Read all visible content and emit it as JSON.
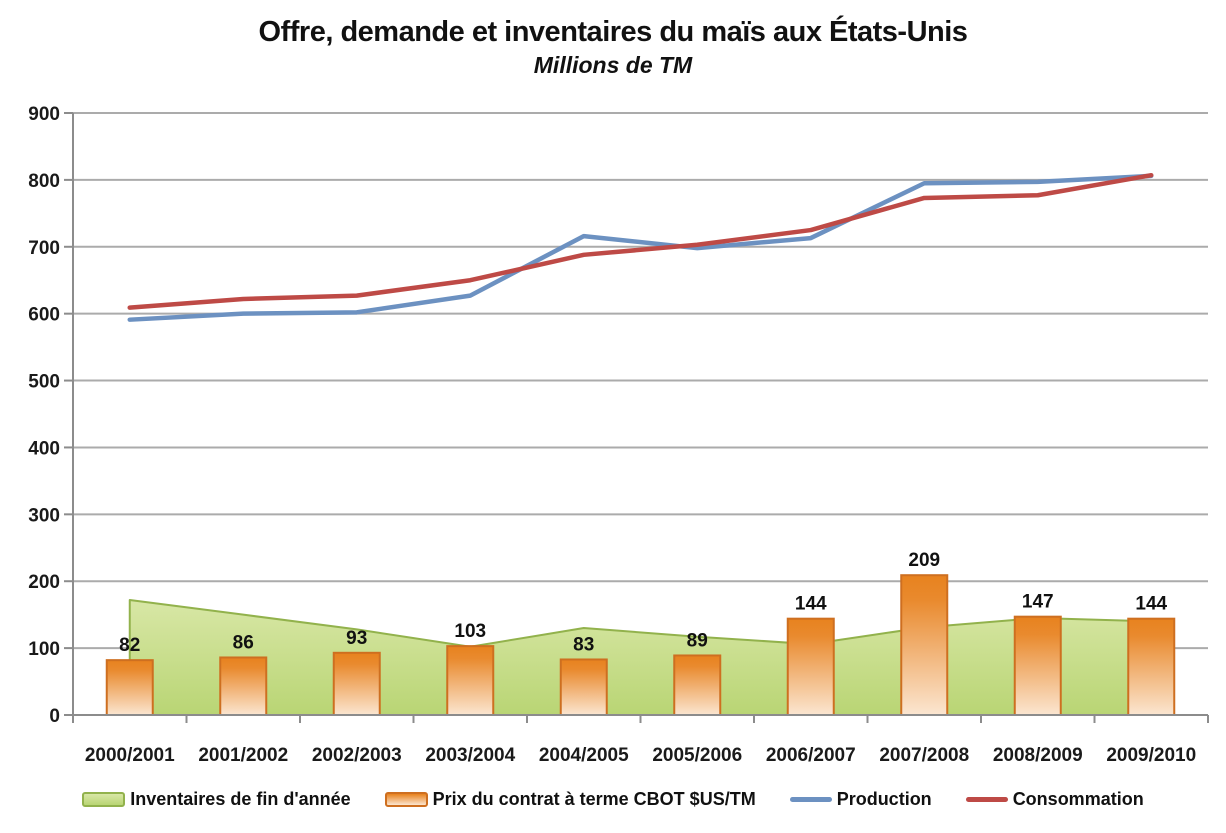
{
  "header": {
    "title": "Offre, demande et inventaires du maïs aux États-Unis",
    "subtitle": "Millions de TM"
  },
  "colors": {
    "production_line": "#6C91C1",
    "consommation_line": "#BE4A46",
    "inventaires_fill_top": "#D8E7A6",
    "inventaires_fill_bottom": "#B9D574",
    "inventaires_border": "#92B24C",
    "prix_fill_top": "#E8821E",
    "prix_fill_bottom": "#FBE6D1",
    "prix_border": "#CE6F20",
    "gridline": "#ABABAB",
    "axis": "#8C8C8C",
    "text": "#1A1A1A"
  },
  "chart_data": {
    "type": "combo",
    "title": "Offre, demande et inventaires du maïs aux États-Unis",
    "subtitle": "Millions de TM",
    "categories": [
      "2000/2001",
      "2001/2002",
      "2002/2003",
      "2003/2004",
      "2004/2005",
      "2005/2006",
      "2006/2007",
      "2007/2008",
      "2008/2009",
      "2009/2010"
    ],
    "series": [
      {
        "name": "Inventaires de fin d'année",
        "type": "area",
        "values": [
          172,
          150,
          128,
          102,
          130,
          117,
          106,
          131,
          145,
          140
        ],
        "data_labels": false
      },
      {
        "name": "Prix du contrat à terme CBOT $US/TM",
        "type": "bar",
        "values": [
          82,
          86,
          93,
          103,
          83,
          89,
          144,
          209,
          147,
          144
        ],
        "data_labels": true
      },
      {
        "name": "Production",
        "type": "line",
        "values": [
          591,
          600,
          602,
          627,
          716,
          698,
          713,
          795,
          797,
          806
        ],
        "data_labels": false
      },
      {
        "name": "Consommation",
        "type": "line",
        "values": [
          609,
          622,
          627,
          650,
          688,
          703,
          725,
          773,
          777,
          807
        ],
        "data_labels": false
      }
    ],
    "xlabel": "",
    "ylabel": "",
    "ylim": [
      0,
      900
    ],
    "yticks": [
      0,
      100,
      200,
      300,
      400,
      500,
      600,
      700,
      800,
      900
    ],
    "grid": true,
    "legend_position": "bottom"
  }
}
